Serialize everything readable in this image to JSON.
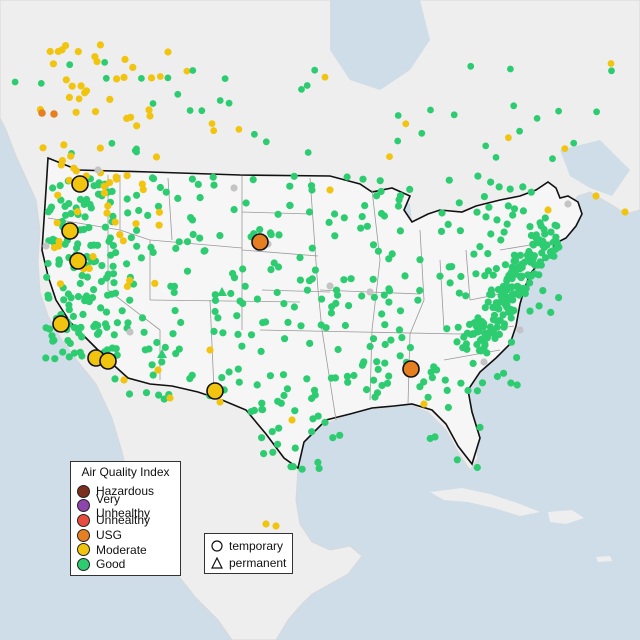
{
  "map": {
    "region": "Contiguous United States",
    "colors": {
      "water": "#cfdde8",
      "land": "#eeeeee",
      "us_land": "#f6f6f6",
      "state_border": "#9a9a9a",
      "country_border": "#111111",
      "Good": "#2ecc71",
      "Moderate": "#f1c40f",
      "USG": "#e67e22",
      "Unhealthy": "#e74c3c",
      "Very Unhealthy": "#8e44ad",
      "Hazardous": "#7b2d1e",
      "unknown": "#c4c4c4"
    }
  },
  "legend": {
    "title": "Air Quality Index",
    "items": [
      {
        "label": "Hazardous",
        "color": "#7b2d1e"
      },
      {
        "label": "Very Unhealthy",
        "color": "#8e44ad"
      },
      {
        "label": "Unhealthy",
        "color": "#e74c3c"
      },
      {
        "label": "USG",
        "color": "#e67e22"
      },
      {
        "label": "Moderate",
        "color": "#f1c40f"
      },
      {
        "label": "Good",
        "color": "#2ecc71"
      }
    ]
  },
  "type_legend": {
    "items": [
      {
        "label": "temporary",
        "icon": "circle-outline-icon"
      },
      {
        "label": "permanent",
        "icon": "triangle-outline-icon"
      }
    ]
  }
}
